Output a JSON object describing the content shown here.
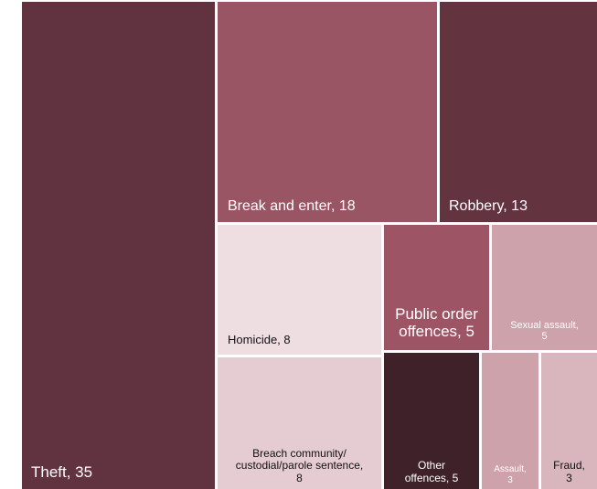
{
  "chart_data": {
    "type": "treemap",
    "title": "",
    "items": [
      {
        "category": "Theft",
        "value": 35,
        "label": "Theft, 35",
        "color": "#613340"
      },
      {
        "category": "Break and enter",
        "value": 18,
        "label": "Break and enter, 18",
        "color": "#9a5565"
      },
      {
        "category": "Robbery",
        "value": 13,
        "label": "Robbery, 13",
        "color": "#633440"
      },
      {
        "category": "Homicide",
        "value": 8,
        "label": "Homicide, 8",
        "color": "#eedee2"
      },
      {
        "category": "Public order offences",
        "value": 5,
        "label": "Public order\noffences, 5",
        "color": "#9d5566"
      },
      {
        "category": "Sexual assault",
        "value": 5,
        "label": "Sexual assault,\n5",
        "color": "#cda2ab"
      },
      {
        "category": "Breach community/ custodial/parole sentence",
        "value": 8,
        "label": "Breach community/\ncustodial/parole sentence,\n8",
        "color": "#e5ccd2"
      },
      {
        "category": "Other offences",
        "value": 5,
        "label": "Other\noffences, 5",
        "color": "#3f2229"
      },
      {
        "category": "Assault",
        "value": 3,
        "label": "Assault,\n3",
        "color": "#cda2ab"
      },
      {
        "category": "Fraud",
        "value": 3,
        "label": "Fraud,\n3",
        "color": "#d9b6bd"
      }
    ]
  }
}
